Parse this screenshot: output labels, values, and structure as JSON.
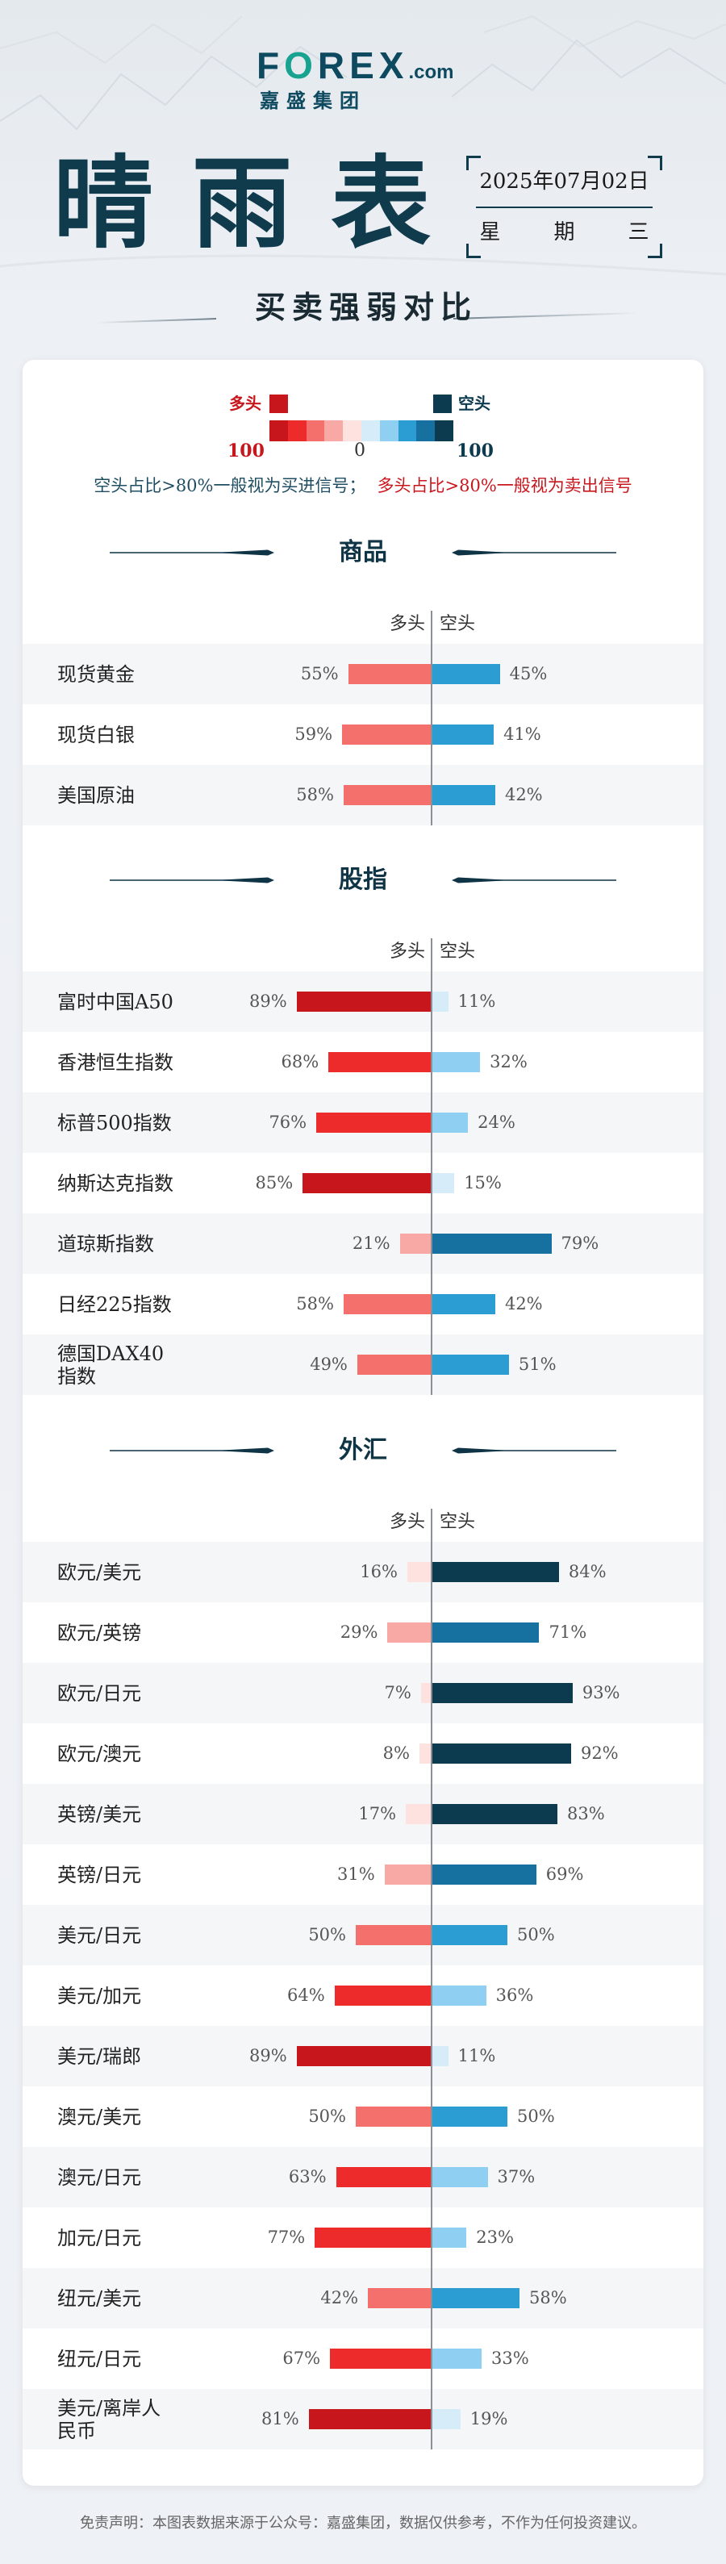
{
  "brand": {
    "logo_parts": [
      "F",
      "O",
      "REX"
    ],
    "logo_suffix": ".com",
    "name_cn": "嘉盛集团"
  },
  "title": "晴雨表",
  "date": "2025年07月02日",
  "weekday": "星期三",
  "subtitle": "买卖强弱对比",
  "legend": {
    "long_label": "多头",
    "short_label": "空头",
    "scale_left": "100",
    "scale_center": "0",
    "scale_right": "100"
  },
  "notes": {
    "short_signal": "空头占比>80%一般视为买进信号；",
    "long_signal": "多头占比>80%一般视为卖出信号"
  },
  "colors": {
    "long_shades": [
      "#fde2e0",
      "#f8a9a6",
      "#f4706d",
      "#ee2b2b",
      "#c8161d"
    ],
    "short_shades": [
      "#d6edf9",
      "#8fd0f2",
      "#2c9dd3",
      "#1670a0",
      "#0c3a4f"
    ],
    "title_navy": "#103b4d"
  },
  "chart_data": [
    {
      "type": "bar",
      "title": "商品",
      "categories": [
        "现货黄金",
        "现货白银",
        "美国原油"
      ],
      "series": [
        {
          "name": "多头",
          "values": [
            55,
            59,
            58
          ]
        },
        {
          "name": "空头",
          "values": [
            45,
            41,
            42
          ]
        }
      ],
      "unit": "%",
      "xlim": [
        0,
        100
      ]
    },
    {
      "type": "bar",
      "title": "股指",
      "categories": [
        "富时中国A50",
        "香港恒生指数",
        "标普500指数",
        "纳斯达克指数",
        "道琼斯指数",
        "日经225指数",
        "德国DAX40指数"
      ],
      "series": [
        {
          "name": "多头",
          "values": [
            89,
            68,
            76,
            85,
            21,
            58,
            49
          ]
        },
        {
          "name": "空头",
          "values": [
            11,
            32,
            24,
            15,
            79,
            42,
            51
          ]
        }
      ],
      "unit": "%",
      "xlim": [
        0,
        100
      ]
    },
    {
      "type": "bar",
      "title": "外汇",
      "categories": [
        "欧元/美元",
        "欧元/英镑",
        "欧元/日元",
        "欧元/澳元",
        "英镑/美元",
        "英镑/日元",
        "美元/日元",
        "美元/加元",
        "美元/瑞郎",
        "澳元/美元",
        "澳元/日元",
        "加元/日元",
        "纽元/美元",
        "纽元/日元",
        "美元/离岸人民币"
      ],
      "series": [
        {
          "name": "多头",
          "values": [
            16,
            29,
            7,
            8,
            17,
            31,
            50,
            64,
            89,
            50,
            63,
            77,
            42,
            67,
            81
          ]
        },
        {
          "name": "空头",
          "values": [
            84,
            71,
            93,
            92,
            83,
            69,
            50,
            36,
            11,
            50,
            37,
            23,
            58,
            33,
            19
          ]
        }
      ],
      "unit": "%",
      "xlim": [
        0,
        100
      ]
    }
  ],
  "disclaimer": "免责声明：本图表数据来源于公众号：嘉盛集团，数据仅供参考，不作为任何投资建议。"
}
